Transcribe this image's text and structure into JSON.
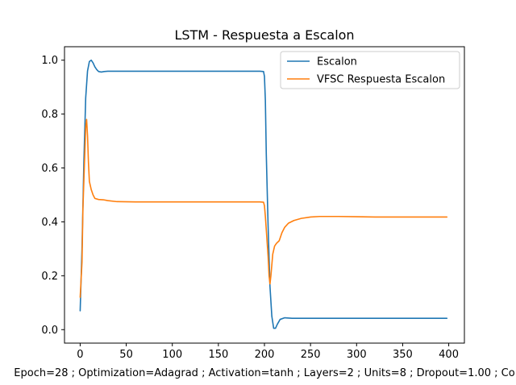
{
  "chart_data": {
    "type": "line",
    "title": "LSTM - Respuesta a Escalon",
    "xlabel": "Epoch=28 ; Optimization=Adagrad ; Activation=tanh ; Layers=2 ; Units=8 ; Dropout=1.00 ; Co",
    "ylabel": "",
    "xlim": [
      -17,
      417
    ],
    "ylim": [
      -0.05,
      1.05
    ],
    "xticks": [
      0,
      50,
      100,
      150,
      200,
      250,
      300,
      350,
      400
    ],
    "yticks": [
      0.0,
      0.2,
      0.4,
      0.6,
      0.8,
      1.0
    ],
    "xtick_labels": [
      "0",
      "50",
      "100",
      "150",
      "200",
      "250",
      "300",
      "350",
      "400"
    ],
    "ytick_labels": [
      "0.0",
      "0.2",
      "0.4",
      "0.6",
      "0.8",
      "1.0"
    ],
    "grid": false,
    "legend_position": "top-right",
    "series": [
      {
        "name": "Escalon",
        "color": "#1f77b4",
        "points": [
          [
            0,
            0.07
          ],
          [
            2,
            0.3
          ],
          [
            4,
            0.62
          ],
          [
            6,
            0.86
          ],
          [
            8,
            0.96
          ],
          [
            10,
            0.995
          ],
          [
            12,
            1.0
          ],
          [
            14,
            0.99
          ],
          [
            16,
            0.975
          ],
          [
            18,
            0.965
          ],
          [
            20,
            0.958
          ],
          [
            23,
            0.956
          ],
          [
            26,
            0.958
          ],
          [
            30,
            0.959
          ],
          [
            40,
            0.959
          ],
          [
            100,
            0.959
          ],
          [
            150,
            0.959
          ],
          [
            195,
            0.959
          ],
          [
            199,
            0.958
          ],
          [
            200,
            0.94
          ],
          [
            201,
            0.85
          ],
          [
            202,
            0.65
          ],
          [
            204,
            0.38
          ],
          [
            206,
            0.16
          ],
          [
            208,
            0.05
          ],
          [
            210,
            0.005
          ],
          [
            212,
            0.005
          ],
          [
            214,
            0.02
          ],
          [
            217,
            0.038
          ],
          [
            222,
            0.044
          ],
          [
            230,
            0.042
          ],
          [
            260,
            0.042
          ],
          [
            300,
            0.042
          ],
          [
            350,
            0.042
          ],
          [
            398,
            0.042
          ]
        ]
      },
      {
        "name": "VFSC Respuesta Escalon",
        "color": "#ff7f0e",
        "points": [
          [
            0,
            0.12
          ],
          [
            2,
            0.25
          ],
          [
            3,
            0.45
          ],
          [
            5,
            0.65
          ],
          [
            6,
            0.75
          ],
          [
            7,
            0.78
          ],
          [
            8,
            0.72
          ],
          [
            9,
            0.62
          ],
          [
            10,
            0.55
          ],
          [
            12,
            0.52
          ],
          [
            14,
            0.5
          ],
          [
            16,
            0.487
          ],
          [
            20,
            0.483
          ],
          [
            25,
            0.482
          ],
          [
            30,
            0.479
          ],
          [
            40,
            0.475
          ],
          [
            60,
            0.474
          ],
          [
            100,
            0.474
          ],
          [
            150,
            0.474
          ],
          [
            195,
            0.474
          ],
          [
            199,
            0.473
          ],
          [
            200,
            0.46
          ],
          [
            201,
            0.42
          ],
          [
            202,
            0.37
          ],
          [
            204,
            0.27
          ],
          [
            205,
            0.2
          ],
          [
            206,
            0.17
          ],
          [
            207,
            0.2
          ],
          [
            209,
            0.28
          ],
          [
            211,
            0.31
          ],
          [
            213,
            0.32
          ],
          [
            216,
            0.33
          ],
          [
            219,
            0.36
          ],
          [
            222,
            0.38
          ],
          [
            226,
            0.395
          ],
          [
            232,
            0.405
          ],
          [
            240,
            0.413
          ],
          [
            250,
            0.418
          ],
          [
            260,
            0.42
          ],
          [
            280,
            0.42
          ],
          [
            300,
            0.419
          ],
          [
            320,
            0.418
          ],
          [
            350,
            0.418
          ],
          [
            398,
            0.418
          ]
        ]
      }
    ]
  }
}
